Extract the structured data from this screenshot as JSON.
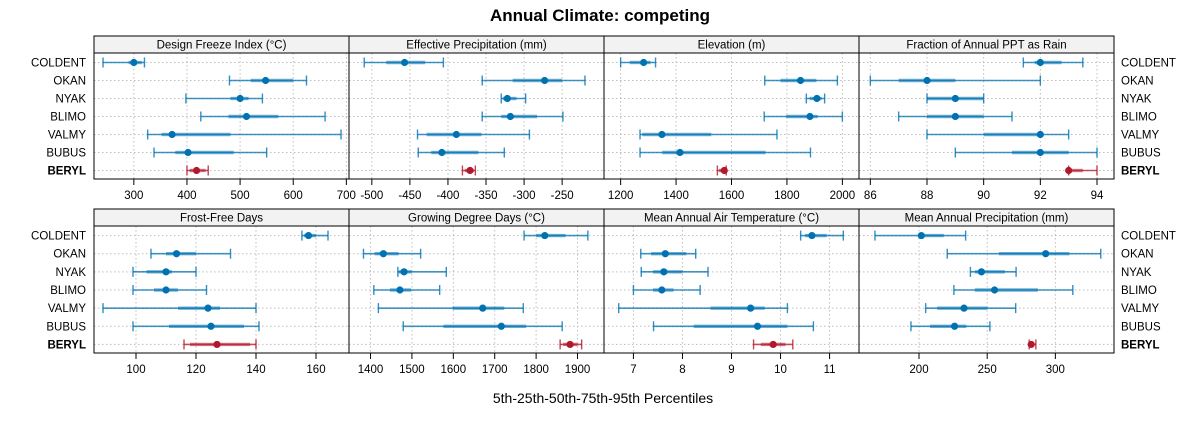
{
  "chart_data": {
    "type": "dot-interval",
    "title": "Annual Climate: competing",
    "xlabel": "5th-25th-50th-75th-95th Percentiles",
    "ylabel": "",
    "grid": true,
    "categories": [
      "COLDENT",
      "OKAN",
      "NYAK",
      "BLIMO",
      "VALMY",
      "BUBUS",
      "BERYL"
    ],
    "highlight_category": "BERYL",
    "colors": {
      "default": "#0072b2",
      "highlight": "#b2182b",
      "strip_bg": "#f2f2f2",
      "grid": "#bdbdbd"
    },
    "percentile_labels": [
      "p5",
      "p25",
      "p50",
      "p75",
      "p95"
    ],
    "panels": [
      {
        "name": "Design Freeze Index (°C)",
        "xlim": [
          225,
          705
        ],
        "ticks": [
          300,
          400,
          500,
          600,
          700
        ],
        "values": {
          "COLDENT": [
            242,
            290,
            300,
            315,
            320
          ],
          "OKAN": [
            480,
            520,
            548,
            600,
            625
          ],
          "NYAK": [
            398,
            482,
            500,
            516,
            542
          ],
          "BLIMO": [
            426,
            478,
            512,
            572,
            660
          ],
          "VALMY": [
            326,
            352,
            372,
            482,
            690
          ],
          "BUBUS": [
            338,
            378,
            402,
            488,
            550
          ],
          "BERYL": [
            400,
            405,
            418,
            435,
            440
          ]
        }
      },
      {
        "name": "Effective Precipitation (mm)",
        "xlim": [
          -530,
          -195
        ],
        "ticks": [
          -500,
          -450,
          -400,
          -350,
          -300,
          -250
        ],
        "values": {
          "COLDENT": [
            -510,
            -481,
            -457,
            -430,
            -406
          ],
          "OKAN": [
            -355,
            -315,
            -273,
            -250,
            -220
          ],
          "NYAK": [
            -330,
            -328,
            -322,
            -310,
            -298
          ],
          "BLIMO": [
            -355,
            -330,
            -318,
            -283,
            -249
          ],
          "VALMY": [
            -440,
            -428,
            -389,
            -356,
            -293
          ],
          "BUBUS": [
            -439,
            -422,
            -408,
            -360,
            -326
          ],
          "BERYL": [
            -381,
            -378,
            -371,
            -366,
            -364
          ]
        }
      },
      {
        "name": "Elevation (m)",
        "xlim": [
          1140,
          2060
        ],
        "ticks": [
          1200,
          1400,
          1600,
          1800,
          2000
        ],
        "values": {
          "COLDENT": [
            1200,
            1233,
            1283,
            1308,
            1326
          ],
          "OKAN": [
            1720,
            1777,
            1849,
            1906,
            1982
          ],
          "NYAK": [
            1870,
            1882,
            1908,
            1925,
            1936
          ],
          "BLIMO": [
            1718,
            1797,
            1883,
            1911,
            2000
          ],
          "VALMY": [
            1270,
            1278,
            1349,
            1527,
            1764
          ],
          "BUBUS": [
            1270,
            1350,
            1414,
            1723,
            1885
          ],
          "BERYL": [
            1549,
            1555,
            1574,
            1578,
            1581
          ]
        }
      },
      {
        "name": "Fraction of Annual PPT as Rain",
        "xlim": [
          85.6,
          94.6
        ],
        "ticks": [
          86,
          88,
          90,
          92,
          94
        ],
        "values": {
          "COLDENT": [
            91.4,
            91.8,
            92.0,
            92.75,
            93.5
          ],
          "OKAN": [
            86.0,
            87.0,
            88.0,
            89.0,
            92.0
          ],
          "NYAK": [
            88.0,
            88.0,
            89.0,
            90.0,
            90.0
          ],
          "BLIMO": [
            87.0,
            88.0,
            89.0,
            90.0,
            91.0
          ],
          "VALMY": [
            88.0,
            90.0,
            92.0,
            92.0,
            93.0
          ],
          "BUBUS": [
            89.0,
            91.0,
            92.0,
            93.0,
            94.0
          ],
          "BERYL": [
            93.0,
            93.0,
            93.0,
            93.5,
            94.0
          ]
        }
      },
      {
        "name": "Frost-Free Days",
        "xlim": [
          86,
          171
        ],
        "ticks": [
          100,
          120,
          140,
          160
        ],
        "values": {
          "COLDENT": [
            155.3,
            156,
            157.5,
            160,
            164
          ],
          "OKAN": [
            105,
            110,
            113.5,
            120,
            131.5
          ],
          "NYAK": [
            99,
            103.5,
            110,
            112,
            120
          ],
          "BLIMO": [
            99,
            106,
            110,
            114,
            123.5
          ],
          "VALMY": [
            89,
            114,
            124,
            128,
            140
          ],
          "BUBUS": [
            99,
            111,
            125,
            136,
            141
          ],
          "BERYL": [
            116,
            118,
            127,
            138,
            140
          ]
        }
      },
      {
        "name": "Growing Degree Days (°C)",
        "xlim": [
          1348,
          1964
        ],
        "ticks": [
          1400,
          1500,
          1600,
          1700,
          1800,
          1900
        ],
        "values": {
          "COLDENT": [
            1771,
            1800,
            1821,
            1871,
            1925
          ],
          "OKAN": [
            1383,
            1410,
            1431,
            1468,
            1521
          ],
          "NYAK": [
            1466,
            1468,
            1481,
            1500,
            1583
          ],
          "BLIMO": [
            1408,
            1447,
            1471,
            1498,
            1567
          ],
          "VALMY": [
            1419,
            1598,
            1671,
            1723,
            1769
          ],
          "BUBUS": [
            1479,
            1576,
            1716,
            1776,
            1863
          ],
          "BERYL": [
            1858,
            1865,
            1882,
            1900,
            1910
          ]
        }
      },
      {
        "name": "Mean Annual Air Temperature (°C)",
        "xlim": [
          6.4,
          11.6
        ],
        "ticks": [
          7,
          8,
          9,
          10,
          11
        ],
        "values": {
          "COLDENT": [
            10.41,
            10.5,
            10.64,
            10.94,
            11.28
          ],
          "OKAN": [
            7.15,
            7.36,
            7.65,
            8.08,
            8.27
          ],
          "NYAK": [
            7.16,
            7.4,
            7.62,
            8.0,
            8.52
          ],
          "BLIMO": [
            7.0,
            7.4,
            7.58,
            7.82,
            8.36
          ],
          "VALMY": [
            6.7,
            8.57,
            9.39,
            9.68,
            10.14
          ],
          "BUBUS": [
            7.41,
            8.23,
            9.53,
            10.14,
            10.67
          ],
          "BERYL": [
            9.45,
            9.6,
            9.85,
            10.1,
            10.25
          ]
        }
      },
      {
        "name": "Mean Annual Precipitation (mm)",
        "xlim": [
          156,
          343
        ],
        "ticks": [
          200,
          250,
          300
        ],
        "values": {
          "COLDENT": [
            167.7,
            200,
            201.7,
            218.2,
            234.2
          ],
          "OKAN": [
            220.7,
            258.6,
            292.9,
            310.3,
            333.3
          ],
          "NYAK": [
            237.7,
            241,
            245.8,
            263,
            271.2
          ],
          "BLIMO": [
            225.6,
            240.9,
            255.4,
            287.2,
            312.8
          ],
          "VALMY": [
            204.9,
            213.3,
            233.0,
            250.2,
            270.9
          ],
          "BUBUS": [
            194.1,
            208.1,
            226.1,
            234.7,
            252.0
          ],
          "BERYL": [
            280.8,
            281.5,
            282.3,
            284.5,
            285.7
          ]
        }
      }
    ]
  }
}
